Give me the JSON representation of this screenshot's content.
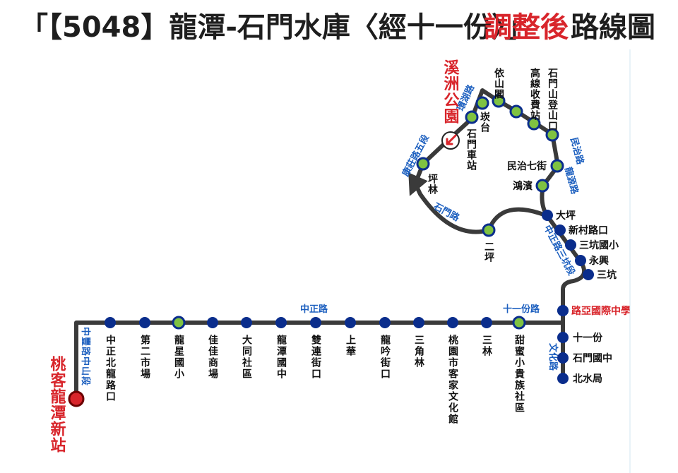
{
  "title": {
    "part1": "「【5048】龍潭-石門水庫〈經十一份〉」",
    "highlight": "調整後",
    "part2": "路線圖"
  },
  "terminals": {
    "start": "桃客龍潭新站",
    "xizhou": "溪洲公園",
    "yaguo": "路亞國際中學"
  },
  "roads": {
    "zhongfeng": "中豐路中山段",
    "zhongzheng": "中正路",
    "shiyifen": "十一份路",
    "wenhua": "文化路",
    "zhongzheng_sankeng": "中正路三坑段",
    "minzhi": "民治路",
    "longyuan": "龍源路",
    "huanhu": "環湖路",
    "kangzhuang": "康莊路五段",
    "shimen": "石門路"
  },
  "stops": {
    "main_line": [
      "中正北龍路口",
      "第二市場",
      "龍星國小",
      "佳佳商場",
      "大同社區",
      "龍潭國中",
      "雙連街口",
      "上華",
      "龍吟街口",
      "三角林",
      "桃園市客家文化館",
      "三林",
      "甜蜜小貴族社區"
    ],
    "south_branch": [
      "十一份",
      "石門國中",
      "北水局"
    ],
    "east_branch": [
      "三坑",
      "永興",
      "三坑國小",
      "新村路口",
      "大坪"
    ],
    "loop": [
      "鴻濱",
      "民治七街",
      "石門山登山口",
      "高線收費站",
      "依山閣",
      "崁台",
      "石門車站",
      "坪林",
      "二坪"
    ]
  },
  "colors": {
    "route": "#3a3a3a",
    "stop": "#0a2d8c",
    "stop_alt": "#7fc241",
    "red": "#d8252b",
    "road_label": "#1c5fbf"
  }
}
